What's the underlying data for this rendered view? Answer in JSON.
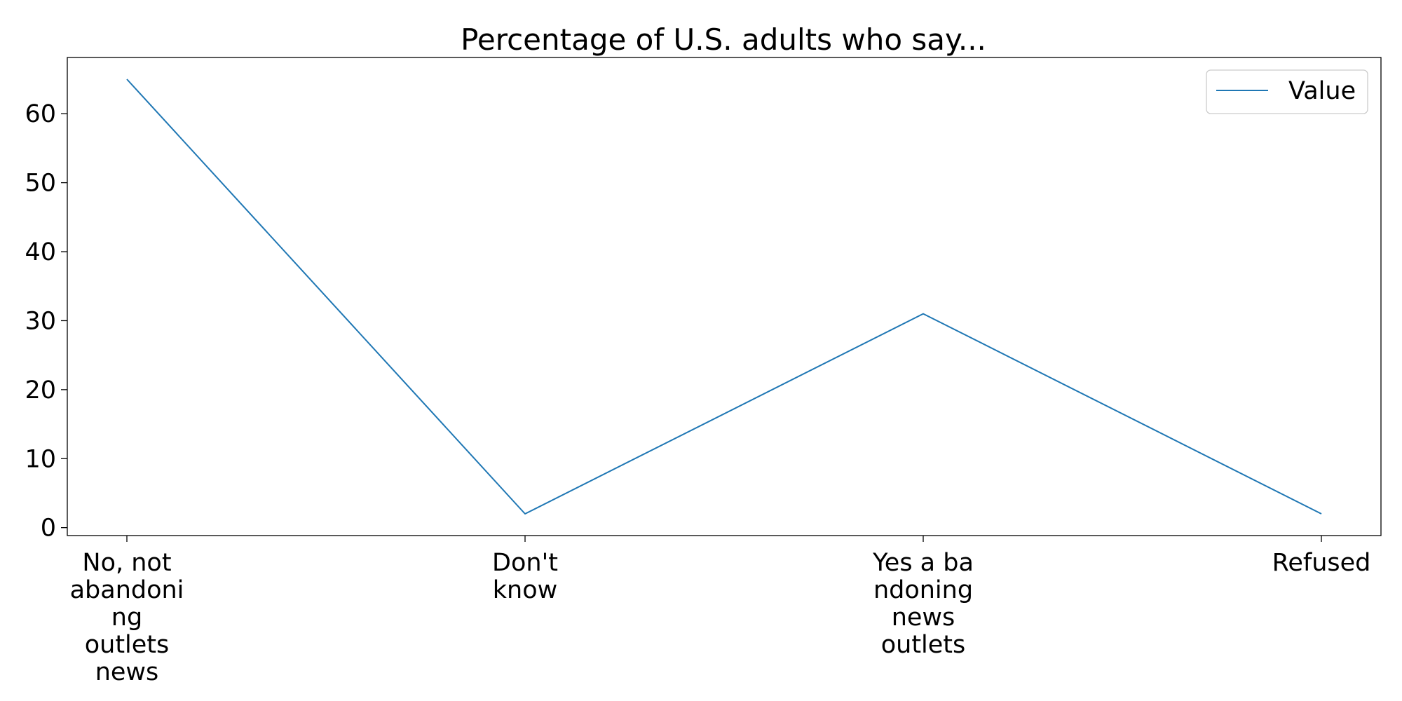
{
  "chart_data": {
    "type": "line",
    "title": "Percentage of U.S. adults who say...",
    "xlabel": "",
    "ylabel": "",
    "categories": [
      [
        "No, not",
        "abandoni",
        "ng",
        "outlets",
        "news"
      ],
      [
        "Don't",
        "know"
      ],
      [
        "Yes a ba",
        "ndoning",
        "news",
        "outlets"
      ],
      [
        "Refused"
      ]
    ],
    "series": [
      {
        "name": "Value",
        "values": [
          65,
          2,
          31,
          2
        ],
        "color": "#1f77b4"
      }
    ],
    "ylim": [
      -1.15,
      68.15
    ],
    "yticks": [
      0,
      10,
      20,
      30,
      40,
      50,
      60
    ],
    "grid": false,
    "legend": "top-right"
  }
}
